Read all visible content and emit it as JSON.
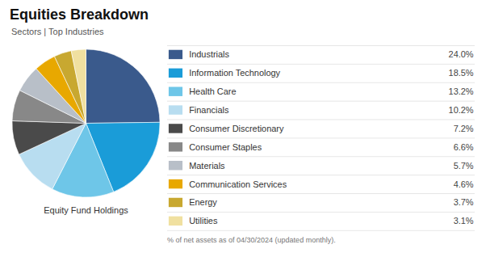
{
  "chart_data": {
    "type": "pie",
    "title": "Equities Breakdown",
    "subtitle": "Sectors | Top Industries",
    "annotation": "Equity Fund Holdings",
    "caption": "% of net assets as of 04/30/2024 (updated monthly).",
    "categories": [
      "Industrials",
      "Information Technology",
      "Health Care",
      "Financials",
      "Consumer Discretionary",
      "Consumer Staples",
      "Materials",
      "Communication Services",
      "Energy",
      "Utilities"
    ],
    "values": [
      24.0,
      18.5,
      13.2,
      10.2,
      7.2,
      6.6,
      5.7,
      4.6,
      3.7,
      3.1
    ],
    "value_labels": [
      "24.0%",
      "18.5%",
      "13.2%",
      "10.2%",
      "7.2%",
      "6.6%",
      "5.7%",
      "4.6%",
      "3.7%",
      "3.1%"
    ],
    "colors": [
      "#3a5a8c",
      "#1a9cd8",
      "#6ec6e8",
      "#b8ddf0",
      "#4a4a4a",
      "#888888",
      "#b8bfc8",
      "#e8a800",
      "#c8a830",
      "#f0e0a0"
    ],
    "legend": "right",
    "data_labels": true
  }
}
